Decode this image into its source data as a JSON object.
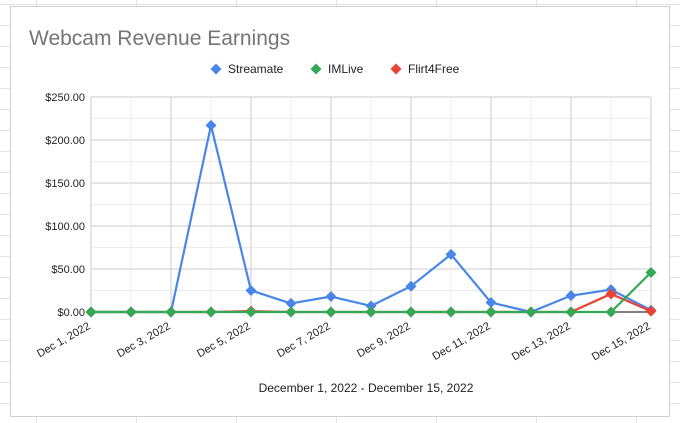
{
  "chart_data": {
    "type": "line",
    "title": "Webcam Revenue Earnings",
    "xlabel": "December 1, 2022 - December 15, 2022",
    "ylabel": "",
    "categories": [
      "Dec 1, 2022",
      "Dec 2, 2022",
      "Dec 3, 2022",
      "Dec 4, 2022",
      "Dec 5, 2022",
      "Dec 6, 2022",
      "Dec 7, 2022",
      "Dec 8, 2022",
      "Dec 9, 2022",
      "Dec 10, 2022",
      "Dec 11, 2022",
      "Dec 12, 2022",
      "Dec 13, 2022",
      "Dec 14, 2022",
      "Dec 15, 2022"
    ],
    "x_tick_labels": [
      "Dec 1, 2022",
      "Dec 3, 2022",
      "Dec 5, 2022",
      "Dec 7, 2022",
      "Dec 9, 2022",
      "Dec 11, 2022",
      "Dec 13, 2022",
      "Dec 15, 2022"
    ],
    "y_tick_labels": [
      "$0.00",
      "$50.00",
      "$100.00",
      "$150.00",
      "$200.00",
      "$250.00"
    ],
    "ylim": [
      0,
      250
    ],
    "grid": true,
    "legend_position": "top",
    "series": [
      {
        "name": "Streamate",
        "color": "#4a86e8",
        "values": [
          0,
          0,
          0,
          217,
          25,
          10,
          18,
          7,
          30,
          67,
          11,
          0,
          19,
          26,
          2
        ]
      },
      {
        "name": "IMLive",
        "color": "#34a853",
        "values": [
          0,
          0,
          0,
          0,
          0,
          0,
          0,
          0,
          0,
          0,
          0,
          0,
          0,
          0,
          46
        ]
      },
      {
        "name": "Flirt4Free",
        "color": "#ea4335",
        "values": [
          0,
          0,
          0,
          0,
          1,
          0,
          0,
          0,
          0,
          0,
          0,
          0,
          0,
          21,
          1
        ]
      }
    ]
  }
}
